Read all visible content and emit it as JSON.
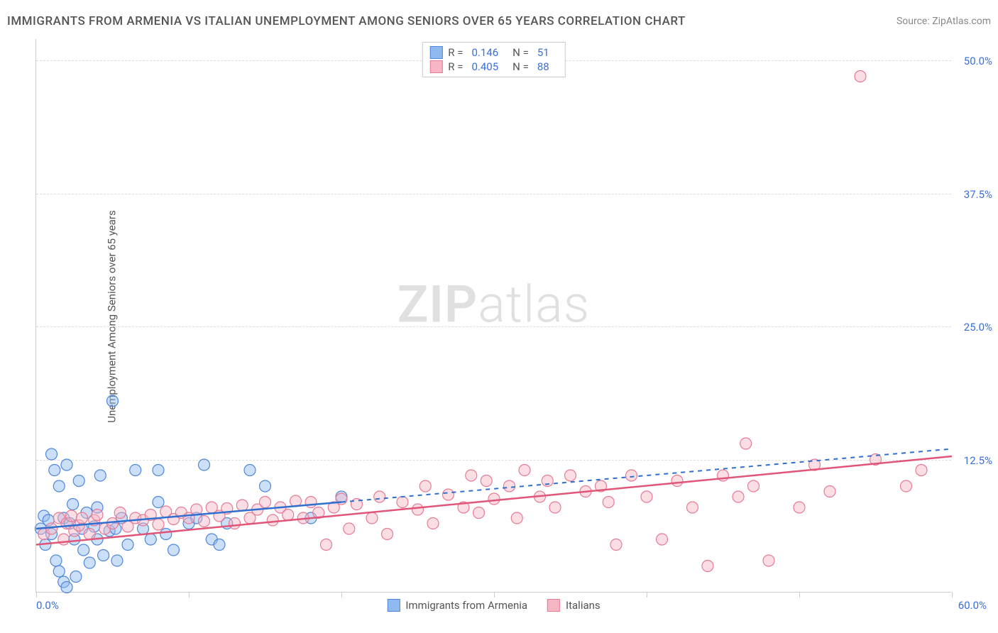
{
  "title": "IMMIGRANTS FROM ARMENIA VS ITALIAN UNEMPLOYMENT AMONG SENIORS OVER 65 YEARS CORRELATION CHART",
  "source": "Source: ZipAtlas.com",
  "watermark_bold": "ZIP",
  "watermark_rest": "atlas",
  "y_axis_label": "Unemployment Among Seniors over 65 years",
  "chart": {
    "type": "scatter",
    "xlim": [
      0,
      60
    ],
    "ylim": [
      0,
      52
    ],
    "x_label_min": "0.0%",
    "x_label_max": "60.0%",
    "x_ticks": [
      0,
      10,
      20,
      30,
      40,
      50,
      60
    ],
    "y_ticks": [
      {
        "v": 12.5,
        "label": "12.5%"
      },
      {
        "v": 25.0,
        "label": "25.0%"
      },
      {
        "v": 37.5,
        "label": "37.5%"
      },
      {
        "v": 50.0,
        "label": "50.0%"
      }
    ],
    "grid_color": "#dddddd",
    "background_color": "#ffffff",
    "marker_radius": 8,
    "marker_opacity": 0.45,
    "series": [
      {
        "key": "armenia",
        "label": "Immigrants from Armenia",
        "fill": "#8fb9ef",
        "stroke": "#4f86d9",
        "trend_color": "#2f6fd0",
        "R": "0.146",
        "N": "51",
        "trend": {
          "x1": 0,
          "y1": 6.0,
          "x2_solid": 20,
          "y2_solid": 8.5,
          "x2": 60,
          "y2": 13.5
        },
        "points": [
          [
            0.3,
            6.0
          ],
          [
            0.5,
            7.2
          ],
          [
            0.6,
            4.5
          ],
          [
            0.8,
            6.8
          ],
          [
            1.0,
            13.0
          ],
          [
            1.0,
            5.5
          ],
          [
            1.2,
            11.5
          ],
          [
            1.3,
            3.0
          ],
          [
            1.5,
            2.0
          ],
          [
            1.5,
            10.0
          ],
          [
            1.8,
            1.0
          ],
          [
            1.8,
            7.0
          ],
          [
            2.0,
            12.0
          ],
          [
            2.0,
            0.5
          ],
          [
            2.2,
            6.5
          ],
          [
            2.4,
            8.3
          ],
          [
            2.5,
            5.0
          ],
          [
            2.6,
            1.5
          ],
          [
            2.8,
            10.5
          ],
          [
            3.0,
            6.0
          ],
          [
            3.1,
            4.0
          ],
          [
            3.3,
            7.5
          ],
          [
            3.5,
            2.8
          ],
          [
            3.8,
            6.2
          ],
          [
            4.0,
            8.0
          ],
          [
            4.0,
            5.0
          ],
          [
            4.2,
            11.0
          ],
          [
            4.4,
            3.5
          ],
          [
            4.8,
            5.8
          ],
          [
            5.0,
            18.0
          ],
          [
            5.2,
            6.0
          ],
          [
            5.3,
            3.0
          ],
          [
            5.6,
            7.0
          ],
          [
            6.0,
            4.5
          ],
          [
            6.5,
            11.5
          ],
          [
            7.0,
            6.0
          ],
          [
            7.5,
            5.0
          ],
          [
            8.0,
            8.5
          ],
          [
            8.0,
            11.5
          ],
          [
            8.5,
            5.5
          ],
          [
            9.0,
            4.0
          ],
          [
            10.0,
            6.5
          ],
          [
            10.5,
            7.0
          ],
          [
            11.0,
            12.0
          ],
          [
            11.5,
            5.0
          ],
          [
            12.0,
            4.5
          ],
          [
            12.5,
            6.5
          ],
          [
            14.0,
            11.5
          ],
          [
            15.0,
            10.0
          ],
          [
            18.0,
            7.0
          ],
          [
            20.0,
            9.0
          ]
        ]
      },
      {
        "key": "italians",
        "label": "Italians",
        "fill": "#f6b6c4",
        "stroke": "#e77a95",
        "trend_color": "#e05578",
        "R": "0.405",
        "N": "88",
        "trend": {
          "x1": 0,
          "y1": 4.5,
          "x2_solid": 60,
          "y2_solid": 12.8,
          "x2": 60,
          "y2": 12.8
        },
        "points": [
          [
            0.5,
            5.5
          ],
          [
            1.0,
            6.0
          ],
          [
            1.5,
            7.0
          ],
          [
            1.8,
            5.0
          ],
          [
            2.0,
            6.5
          ],
          [
            2.3,
            7.2
          ],
          [
            2.5,
            5.8
          ],
          [
            2.8,
            6.3
          ],
          [
            3.0,
            7.0
          ],
          [
            3.5,
            5.5
          ],
          [
            3.8,
            6.8
          ],
          [
            4.0,
            7.3
          ],
          [
            4.5,
            6.0
          ],
          [
            5.0,
            6.5
          ],
          [
            5.5,
            7.5
          ],
          [
            6.0,
            6.2
          ],
          [
            6.5,
            7.0
          ],
          [
            7.0,
            6.8
          ],
          [
            7.5,
            7.3
          ],
          [
            8.0,
            6.4
          ],
          [
            8.5,
            7.6
          ],
          [
            9.0,
            6.9
          ],
          [
            9.5,
            7.5
          ],
          [
            10.0,
            7.0
          ],
          [
            10.5,
            7.8
          ],
          [
            11.0,
            6.7
          ],
          [
            11.5,
            8.0
          ],
          [
            12.0,
            7.2
          ],
          [
            12.5,
            7.9
          ],
          [
            13.0,
            6.5
          ],
          [
            13.5,
            8.2
          ],
          [
            14.0,
            7.0
          ],
          [
            14.5,
            7.8
          ],
          [
            15.0,
            8.5
          ],
          [
            15.5,
            6.8
          ],
          [
            16.0,
            8.0
          ],
          [
            16.5,
            7.3
          ],
          [
            17.0,
            8.6
          ],
          [
            17.5,
            7.0
          ],
          [
            18.0,
            8.5
          ],
          [
            18.5,
            7.5
          ],
          [
            19.0,
            4.5
          ],
          [
            19.5,
            8.0
          ],
          [
            20.0,
            8.8
          ],
          [
            20.5,
            6.0
          ],
          [
            21.0,
            8.3
          ],
          [
            22.0,
            7.0
          ],
          [
            22.5,
            9.0
          ],
          [
            23.0,
            5.5
          ],
          [
            24.0,
            8.5
          ],
          [
            25.0,
            7.8
          ],
          [
            25.5,
            10.0
          ],
          [
            26.0,
            6.5
          ],
          [
            27.0,
            9.2
          ],
          [
            28.0,
            8.0
          ],
          [
            28.5,
            11.0
          ],
          [
            29.0,
            7.5
          ],
          [
            29.5,
            10.5
          ],
          [
            30.0,
            8.8
          ],
          [
            31.0,
            10.0
          ],
          [
            31.5,
            7.0
          ],
          [
            32.0,
            11.5
          ],
          [
            33.0,
            9.0
          ],
          [
            33.5,
            10.5
          ],
          [
            34.0,
            8.0
          ],
          [
            35.0,
            11.0
          ],
          [
            36.0,
            9.5
          ],
          [
            37.0,
            10.0
          ],
          [
            37.5,
            8.5
          ],
          [
            38.0,
            4.5
          ],
          [
            39.0,
            11.0
          ],
          [
            40.0,
            9.0
          ],
          [
            41.0,
            5.0
          ],
          [
            42.0,
            10.5
          ],
          [
            43.0,
            8.0
          ],
          [
            44.0,
            2.5
          ],
          [
            45.0,
            11.0
          ],
          [
            46.0,
            9.0
          ],
          [
            46.5,
            14.0
          ],
          [
            47.0,
            10.0
          ],
          [
            48.0,
            3.0
          ],
          [
            50.0,
            8.0
          ],
          [
            51.0,
            12.0
          ],
          [
            52.0,
            9.5
          ],
          [
            54.0,
            48.5
          ],
          [
            55.0,
            12.5
          ],
          [
            57.0,
            10.0
          ],
          [
            58.0,
            11.5
          ]
        ]
      }
    ]
  },
  "legend_labels": {
    "R": "R  =",
    "N": "N  ="
  }
}
